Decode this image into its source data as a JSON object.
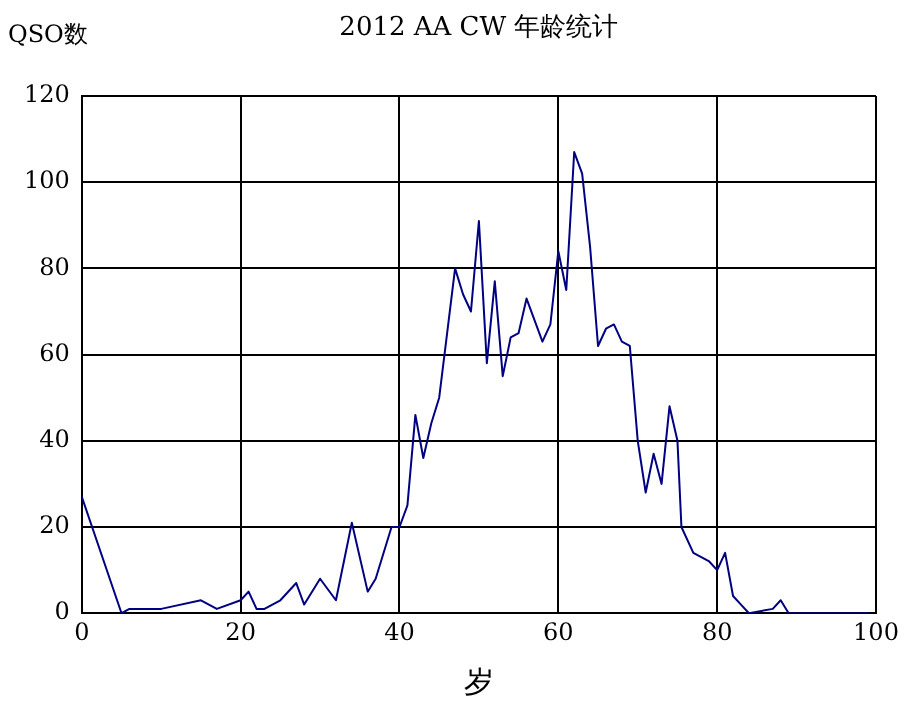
{
  "chart_data": {
    "type": "line",
    "title": "2012 AA CW 年龄统计",
    "xlabel": "岁",
    "ylabel": "QSO数",
    "x": [
      0,
      5,
      6,
      10,
      15,
      17,
      20,
      21,
      22,
      23,
      25,
      27,
      28,
      30,
      32,
      34,
      36,
      37,
      39,
      40,
      41,
      42,
      43,
      44,
      45,
      46,
      47,
      48,
      49,
      50,
      51,
      52,
      53,
      54,
      55,
      56,
      57,
      58,
      59,
      60,
      61,
      62,
      63,
      64,
      65,
      66,
      67,
      68,
      69,
      70,
      71,
      72,
      73,
      74,
      75,
      75.5,
      77,
      79,
      80,
      81,
      82,
      83,
      84,
      87,
      88,
      89,
      99
    ],
    "series": [
      {
        "color": "#000080",
        "values": [
          27,
          0,
          1,
          1,
          3,
          1,
          3,
          5,
          1,
          1,
          3,
          7,
          2,
          8,
          3,
          21,
          5,
          8,
          20,
          20,
          25,
          46,
          36,
          44,
          50,
          65,
          80,
          74,
          70,
          91,
          58,
          77,
          55,
          64,
          65,
          73,
          68,
          63,
          67,
          84,
          75,
          107,
          102,
          85,
          62,
          66,
          67,
          63,
          62,
          40,
          28,
          37,
          30,
          48,
          40,
          20,
          14,
          12,
          10,
          14,
          4,
          2,
          0,
          1,
          3,
          0,
          0
        ]
      }
    ],
    "xlim": [
      0,
      100
    ],
    "xticks": [
      0,
      20,
      40,
      60,
      80,
      100
    ],
    "ylim": [
      0,
      120
    ],
    "yticks": [
      0,
      20,
      40,
      60,
      80,
      100,
      120
    ],
    "grid": true,
    "legend": false,
    "marker": "none",
    "line_style": "solid"
  }
}
